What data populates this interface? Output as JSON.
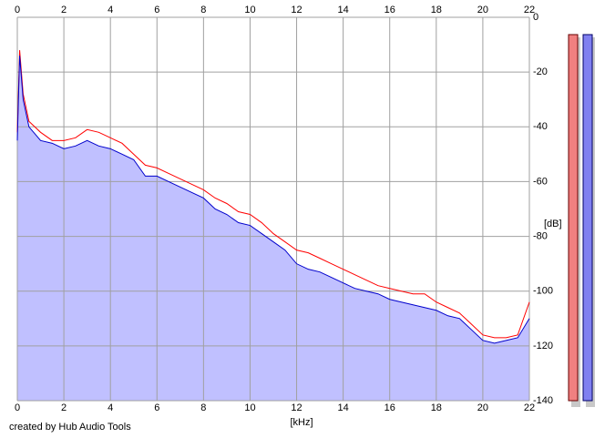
{
  "chart_data": {
    "type": "line",
    "x": [
      0,
      0.1,
      0.25,
      0.5,
      1,
      1.5,
      2,
      2.5,
      3,
      3.5,
      4,
      4.5,
      5,
      5.5,
      6,
      6.5,
      7,
      7.5,
      8,
      8.5,
      9,
      9.5,
      10,
      10.5,
      11,
      11.5,
      12,
      12.5,
      13,
      13.5,
      14,
      14.5,
      15,
      15.5,
      16,
      16.5,
      17,
      17.5,
      18,
      18.5,
      19,
      19.5,
      20,
      20.5,
      21,
      21.5,
      22
    ],
    "series": [
      {
        "color": "#ff0000",
        "values": [
          -42,
          -12,
          -28,
          -38,
          -42,
          -45,
          -45,
          -44,
          -41,
          -42,
          -44,
          -46,
          -50,
          -54,
          -55,
          -57,
          -59,
          -61,
          -63,
          -66,
          -68,
          -71,
          -72,
          -75,
          -79,
          -82,
          -85,
          -86,
          -88,
          -90,
          -92,
          -94,
          -96,
          -98,
          -99,
          -100,
          -101,
          -101,
          -104,
          -106,
          -108,
          -112,
          -116,
          -117,
          -117,
          -116,
          -104
        ]
      },
      {
        "color": "#0000cc",
        "area_color": "#c0c0ff",
        "values": [
          -45,
          -14,
          -30,
          -40,
          -45,
          -46,
          -48,
          -47,
          -45,
          -47,
          -48,
          -50,
          -52,
          -58,
          -58,
          -60,
          -62,
          -64,
          -66,
          -70,
          -72,
          -75,
          -76,
          -79,
          -82,
          -85,
          -90,
          -92,
          -93,
          -95,
          -97,
          -99,
          -100,
          -101,
          -103,
          -104,
          -105,
          -106,
          -107,
          -109,
          -110,
          -114,
          -118,
          -119,
          -118,
          -117,
          -110
        ]
      }
    ],
    "xlim": [
      0,
      22
    ],
    "xticks": [
      0,
      2,
      4,
      6,
      8,
      10,
      12,
      14,
      16,
      18,
      20,
      22
    ],
    "ylim": [
      -140,
      0
    ],
    "yticks": [
      0,
      -20,
      -40,
      -60,
      -80,
      -100,
      -120,
      -140
    ],
    "x_label": "[kHz]",
    "y_label": "[dB]",
    "grid": true,
    "footer": "created by Hub Audio Tools"
  }
}
